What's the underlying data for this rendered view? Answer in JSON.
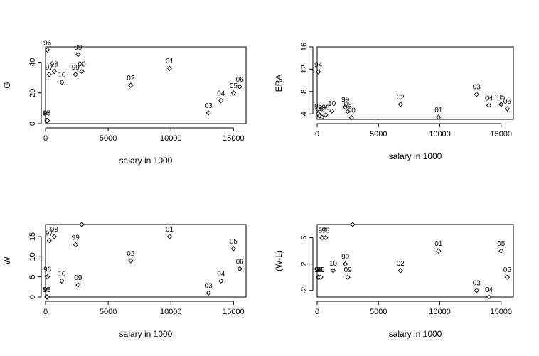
{
  "chart_data": [
    {
      "type": "scatter",
      "xlabel": "salary in 1000",
      "ylabel": "G",
      "xlim": [
        0,
        16000
      ],
      "ylim": [
        0,
        50
      ],
      "xticks": [
        0,
        5000,
        10000,
        15000
      ],
      "yticks": [
        0,
        20,
        40
      ],
      "ytick_labels": [
        "0",
        "20",
        "40"
      ],
      "ytick_rotated": true,
      "points": [
        {
          "x": 150,
          "y": 48,
          "label": "96"
        },
        {
          "x": 300,
          "y": 32,
          "label": "97"
        },
        {
          "x": 700,
          "y": 34,
          "label": "98"
        },
        {
          "x": 1300,
          "y": 27,
          "label": "10"
        },
        {
          "x": 2400,
          "y": 32,
          "label": "99"
        },
        {
          "x": 2600,
          "y": 45,
          "label": "09"
        },
        {
          "x": 2900,
          "y": 34,
          "label": "00"
        },
        {
          "x": 6800,
          "y": 25,
          "label": "02"
        },
        {
          "x": 9900,
          "y": 36,
          "label": "01"
        },
        {
          "x": 13000,
          "y": 7,
          "label": "03"
        },
        {
          "x": 14000,
          "y": 15,
          "label": "04"
        },
        {
          "x": 15000,
          "y": 20,
          "label": "05"
        },
        {
          "x": 15500,
          "y": 24,
          "label": "06"
        },
        {
          "x": 100,
          "y": 2,
          "label": "95"
        },
        {
          "x": 150,
          "y": 2,
          "label": "94"
        }
      ]
    },
    {
      "type": "scatter",
      "xlabel": "salary in 1000",
      "ylabel": "ERA",
      "xlim": [
        0,
        16000
      ],
      "ylim": [
        3,
        16
      ],
      "xticks": [
        0,
        5000,
        10000,
        15000
      ],
      "yticks": [
        4,
        8,
        12,
        16
      ],
      "ytick_labels": [
        "4",
        "8",
        "12",
        "16"
      ],
      "ytick_rotated": true,
      "points": [
        {
          "x": 100,
          "y": 11.5,
          "label": "94"
        },
        {
          "x": 100,
          "y": 4.0,
          "label": "95"
        },
        {
          "x": 200,
          "y": 3.6,
          "label": "96"
        },
        {
          "x": 400,
          "y": 3.4,
          "label": "97"
        },
        {
          "x": 700,
          "y": 3.8,
          "label": "98"
        },
        {
          "x": 1200,
          "y": 4.5,
          "label": "10"
        },
        {
          "x": 2300,
          "y": 5.2,
          "label": "99"
        },
        {
          "x": 2500,
          "y": 4.4,
          "label": "09"
        },
        {
          "x": 2800,
          "y": 3.3,
          "label": "00"
        },
        {
          "x": 6800,
          "y": 5.7,
          "label": "02"
        },
        {
          "x": 9900,
          "y": 3.4,
          "label": "01"
        },
        {
          "x": 13000,
          "y": 7.5,
          "label": "03"
        },
        {
          "x": 14000,
          "y": 5.5,
          "label": "04"
        },
        {
          "x": 15000,
          "y": 5.7,
          "label": "05"
        },
        {
          "x": 15500,
          "y": 4.9,
          "label": "06"
        }
      ]
    },
    {
      "type": "scatter",
      "xlabel": "salary in 1000",
      "ylabel": "W",
      "xlim": [
        0,
        16000
      ],
      "ylim": [
        0,
        18
      ],
      "xticks": [
        0,
        5000,
        10000,
        15000
      ],
      "yticks": [
        0,
        5,
        10,
        15
      ],
      "ytick_labels": [
        "0",
        "5",
        "10",
        "15"
      ],
      "ytick_rotated": true,
      "points": [
        {
          "x": 150,
          "y": 5,
          "label": "96"
        },
        {
          "x": 300,
          "y": 14,
          "label": "97"
        },
        {
          "x": 700,
          "y": 15,
          "label": "98"
        },
        {
          "x": 1300,
          "y": 4,
          "label": "10"
        },
        {
          "x": 2400,
          "y": 13,
          "label": "99"
        },
        {
          "x": 2600,
          "y": 3,
          "label": "09"
        },
        {
          "x": 2900,
          "y": 18,
          "label": ""
        },
        {
          "x": 6800,
          "y": 9,
          "label": "02"
        },
        {
          "x": 9900,
          "y": 15,
          "label": "01"
        },
        {
          "x": 13000,
          "y": 1,
          "label": "03"
        },
        {
          "x": 14000,
          "y": 4,
          "label": "04"
        },
        {
          "x": 15000,
          "y": 12,
          "label": "05"
        },
        {
          "x": 15500,
          "y": 7,
          "label": "06"
        },
        {
          "x": 100,
          "y": 0,
          "label": "95"
        },
        {
          "x": 150,
          "y": 0,
          "label": "94"
        }
      ]
    },
    {
      "type": "scatter",
      "xlabel": "salary in 1000",
      "ylabel": "(W-L)",
      "xlim": [
        0,
        16000
      ],
      "ylim": [
        -3,
        8
      ],
      "xticks": [
        0,
        5000,
        10000,
        15000
      ],
      "yticks": [
        -2,
        2,
        6
      ],
      "ytick_labels": [
        "-2",
        "2",
        "6"
      ],
      "ytick_rotated": true,
      "points": [
        {
          "x": 100,
          "y": 0,
          "label": "95"
        },
        {
          "x": 150,
          "y": 0,
          "label": "94"
        },
        {
          "x": 300,
          "y": 0,
          "label": "96"
        },
        {
          "x": 400,
          "y": 6,
          "label": "97"
        },
        {
          "x": 700,
          "y": 6,
          "label": "98"
        },
        {
          "x": 1300,
          "y": 1,
          "label": "10"
        },
        {
          "x": 2300,
          "y": 2,
          "label": "99"
        },
        {
          "x": 2500,
          "y": 0,
          "label": "09"
        },
        {
          "x": 2900,
          "y": 8,
          "label": ""
        },
        {
          "x": 6800,
          "y": 1,
          "label": "02"
        },
        {
          "x": 9900,
          "y": 4,
          "label": "01"
        },
        {
          "x": 13000,
          "y": -2,
          "label": "03"
        },
        {
          "x": 14000,
          "y": -3,
          "label": "04"
        },
        {
          "x": 15000,
          "y": 4,
          "label": "05"
        },
        {
          "x": 15500,
          "y": 0,
          "label": "06"
        }
      ]
    }
  ]
}
